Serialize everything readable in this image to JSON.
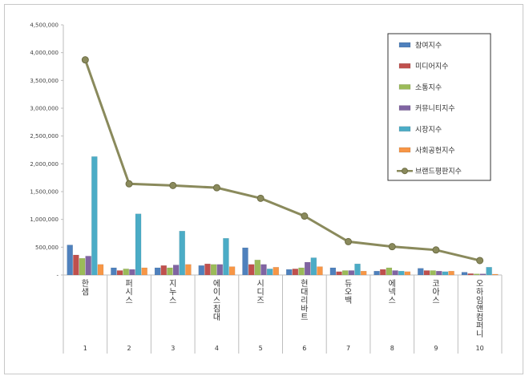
{
  "colors": {
    "참여지수": "#4f81bd",
    "미디어지수": "#c0504d",
    "소통지수": "#9bbb59",
    "커뮤니티지수": "#8064a2",
    "시장지수": "#4bacc6",
    "사회공헌지수": "#f79646",
    "브랜드평판지수": "#8a8a5c"
  },
  "chart_data": {
    "type": "bar",
    "categories": [
      "한샘",
      "퍼시스",
      "지누스",
      "에이스침대",
      "시디즈",
      "현대리바트",
      "듀오백",
      "에넥스",
      "코아스",
      "오하임앤컴퍼니"
    ],
    "index_labels": [
      "1",
      "2",
      "3",
      "4",
      "5",
      "6",
      "7",
      "8",
      "9",
      "10"
    ],
    "ylim": [
      0,
      4500000
    ],
    "y_ticks": [
      "-",
      "500,000",
      "1,000,000",
      "1,500,000",
      "2,000,000",
      "2,500,000",
      "3,000,000",
      "3,500,000",
      "4,000,000",
      "4,500,000"
    ],
    "series": [
      {
        "name": "참여지수",
        "values": [
          540000,
          130000,
          130000,
          170000,
          490000,
          100000,
          130000,
          70000,
          120000,
          50000
        ]
      },
      {
        "name": "미디어지수",
        "values": [
          360000,
          80000,
          170000,
          200000,
          190000,
          110000,
          60000,
          100000,
          80000,
          25000
        ]
      },
      {
        "name": "소통지수",
        "values": [
          300000,
          110000,
          130000,
          190000,
          270000,
          130000,
          80000,
          130000,
          80000,
          20000
        ]
      },
      {
        "name": "커뮤니티지수",
        "values": [
          340000,
          100000,
          180000,
          190000,
          190000,
          230000,
          80000,
          80000,
          70000,
          20000
        ]
      },
      {
        "name": "시장지수",
        "values": [
          2130000,
          1100000,
          790000,
          660000,
          110000,
          310000,
          200000,
          70000,
          60000,
          140000
        ]
      },
      {
        "name": "사회공헌지수",
        "values": [
          190000,
          130000,
          190000,
          150000,
          140000,
          150000,
          70000,
          60000,
          70000,
          15000
        ]
      }
    ],
    "line_series": {
      "name": "브랜드평판지수",
      "values": [
        3870000,
        1640000,
        1610000,
        1570000,
        1380000,
        1060000,
        600000,
        510000,
        450000,
        260000
      ]
    },
    "legend_position": "top-right",
    "grid": false
  }
}
